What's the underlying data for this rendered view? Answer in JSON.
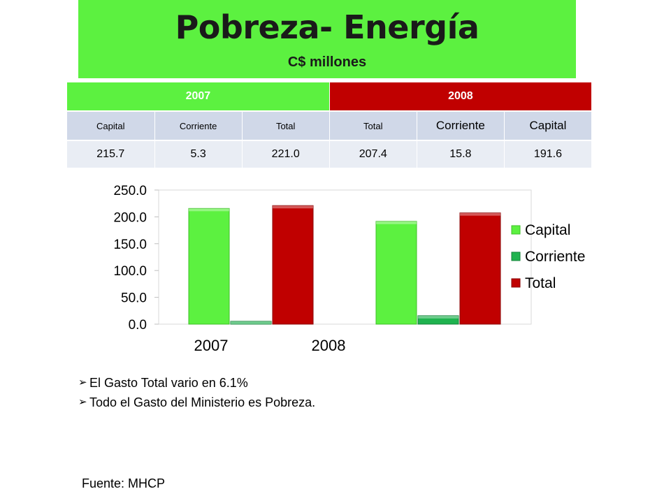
{
  "title": "Pobreza- Energía",
  "subtitle": "C$ millones",
  "table": {
    "years": [
      "2007",
      "2008"
    ],
    "headers": [
      "Capital",
      "Corriente",
      "Total",
      "Total",
      "Corriente",
      "Capital"
    ],
    "values": [
      "215.7",
      "5.3",
      "221.0",
      "207.4",
      "15.8",
      "191.6"
    ]
  },
  "chart_data": {
    "type": "bar",
    "categories": [
      "2007",
      "2008"
    ],
    "series": [
      {
        "name": "Capital",
        "values": [
          215.7,
          191.6
        ],
        "color": "#5cf140"
      },
      {
        "name": "Corriente",
        "values": [
          5.3,
          15.8
        ],
        "color": "#1fb34f"
      },
      {
        "name": "Total",
        "values": [
          221.0,
          207.4
        ],
        "color": "#c00000"
      }
    ],
    "yticks": [
      "250.0",
      "200.0",
      "150.0",
      "100.0",
      "50.0",
      "0.0"
    ],
    "ylim": [
      0,
      250
    ],
    "grid": false,
    "legend": "right"
  },
  "bullets": [
    "El Gasto Total vario en 6.1%",
    "Todo el Gasto del Ministerio es Pobreza."
  ],
  "source": "Fuente: MHCP"
}
